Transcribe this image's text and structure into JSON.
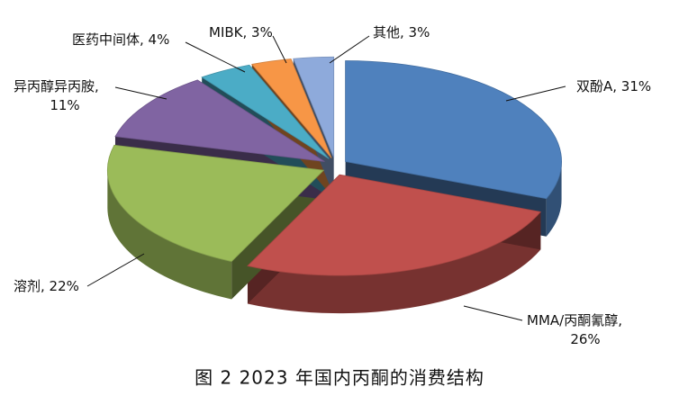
{
  "chart_data": {
    "type": "pie3d",
    "caption": "图 2 2023 年国内丙酮的消费结构",
    "values": [
      31,
      26,
      22,
      11,
      4,
      3,
      3
    ],
    "value_labels": [
      "双酚A, 31%",
      "MMA/丙酮氰醇,\n26%",
      "溶剂, 22%",
      "异丙醇异丙胺,\n11%",
      "医药中间体, 4%",
      "MIBK, 3%",
      "其他, 3%"
    ],
    "colors": [
      "#4f81bd",
      "#c0504d",
      "#9bbb59",
      "#8064a2",
      "#4bacc6",
      "#f79646",
      "#8eaadb"
    ]
  }
}
